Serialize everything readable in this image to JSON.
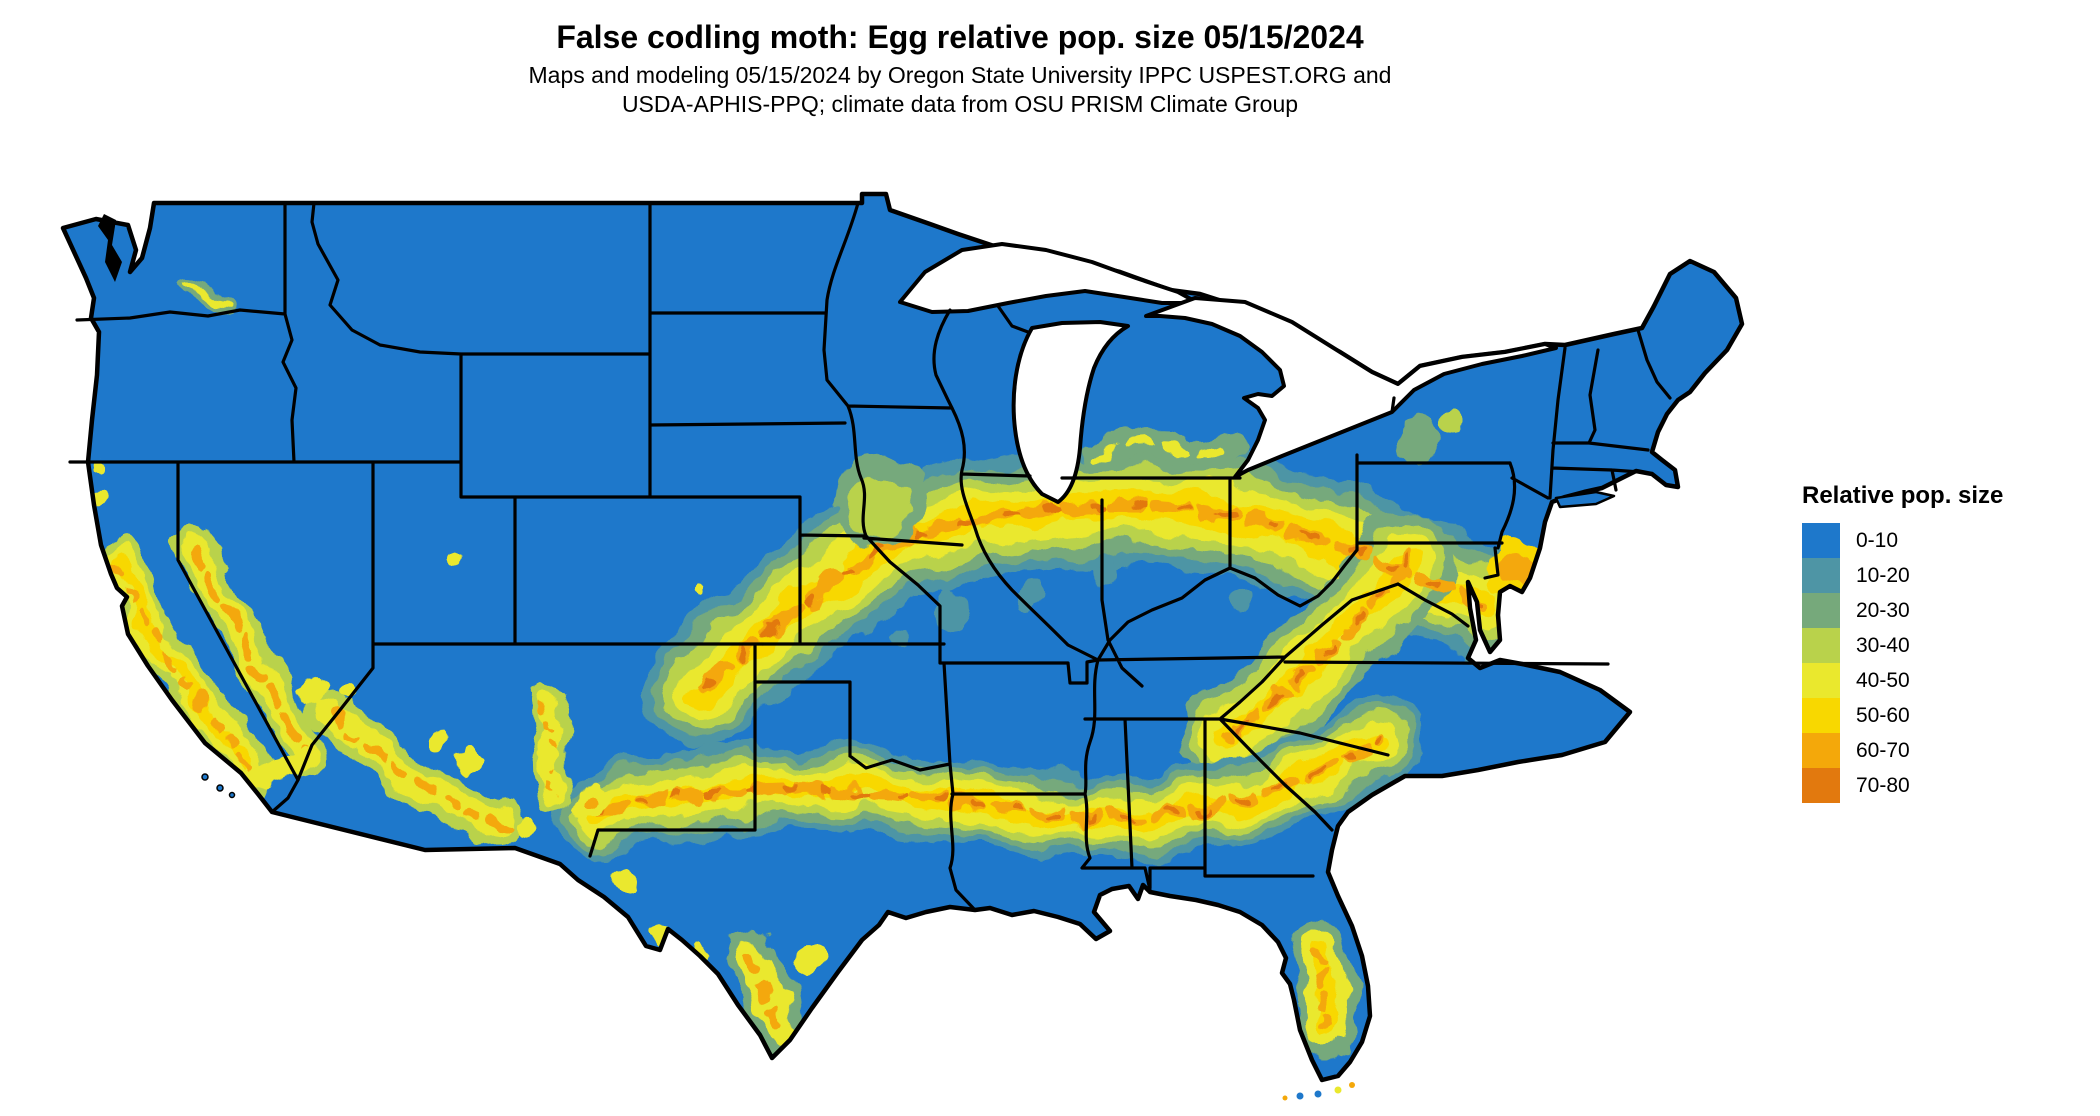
{
  "title": "False codling moth: Egg relative pop. size 05/15/2024",
  "subtitle_line1": "Maps and modeling 05/15/2024 by Oregon State University IPPC USPEST.ORG and",
  "subtitle_line2": "USDA-APHIS-PPQ; climate data from OSU PRISM Climate Group",
  "legend": {
    "title": "Relative pop. size",
    "items": [
      {
        "label": "0-10",
        "color": "#1e78cb"
      },
      {
        "label": "10-20",
        "color": "#4e95a5"
      },
      {
        "label": "20-30",
        "color": "#76a97b"
      },
      {
        "label": "30-40",
        "color": "#b9d24b"
      },
      {
        "label": "40-50",
        "color": "#eae82d"
      },
      {
        "label": "50-60",
        "color": "#f8d800"
      },
      {
        "label": "60-70",
        "color": "#f4a80a"
      },
      {
        "label": "70-80",
        "color": "#e2790e"
      }
    ]
  },
  "map": {
    "background_color": "#ffffff",
    "boundary_color": "#000000",
    "base_class_label": "0-10"
  }
}
